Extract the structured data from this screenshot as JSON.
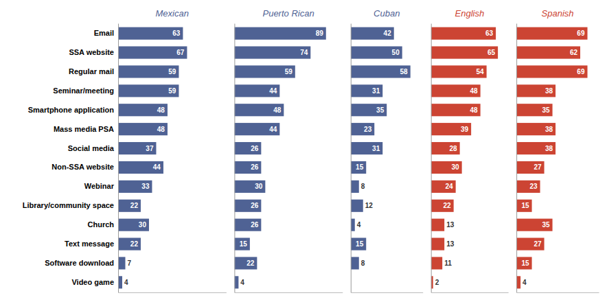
{
  "chart_data": [
    {
      "type": "bar",
      "orientation": "horizontal",
      "title": "Mexican",
      "categories": [
        "Email",
        "SSA website",
        "Regular mail",
        "Seminar/meeting",
        "Smartphone application",
        "Mass media PSA",
        "Social media",
        "Non-SSA website",
        "Webinar",
        "Library/community space",
        "Church",
        "Text message",
        "Software download",
        "Video game"
      ],
      "values": [
        63,
        67,
        59,
        59,
        48,
        48,
        37,
        44,
        33,
        22,
        30,
        22,
        7,
        4
      ],
      "color": "#4f6294",
      "xlim": [
        0,
        105
      ],
      "xticks": [],
      "data_labels": true,
      "tick_labels": "y"
    },
    {
      "type": "bar",
      "orientation": "horizontal",
      "title": "Puerto Rican",
      "categories": [
        "Email",
        "SSA website",
        "Regular mail",
        "Seminar/meeting",
        "Smartphone application",
        "Mass media PSA",
        "Social media",
        "Non-SSA website",
        "Webinar",
        "Library/community space",
        "Church",
        "Text message",
        "Software download",
        "Video game"
      ],
      "values": [
        89,
        74,
        59,
        44,
        48,
        44,
        26,
        26,
        30,
        26,
        26,
        15,
        22,
        4
      ],
      "color": "#4f6294",
      "xlim": [
        0,
        105
      ],
      "xticks": [],
      "data_labels": true,
      "tick_labels": false
    },
    {
      "type": "bar",
      "orientation": "horizontal",
      "title": "Cuban",
      "categories": [
        "Email",
        "SSA website",
        "Regular mail",
        "Seminar/meeting",
        "Smartphone application",
        "Mass media PSA",
        "Social media",
        "Non-SSA website",
        "Webinar",
        "Library/community space",
        "Church",
        "Text message",
        "Software download",
        "Video game"
      ],
      "values": [
        42,
        50,
        58,
        31,
        35,
        23,
        31,
        15,
        8,
        12,
        4,
        15,
        8,
        0
      ],
      "color": "#4f6294",
      "xlim": [
        0,
        70
      ],
      "xticks": [],
      "data_labels": true,
      "tick_labels": false
    },
    {
      "type": "bar",
      "orientation": "horizontal",
      "title": "English",
      "categories": [
        "Email",
        "SSA website",
        "Regular mail",
        "Seminar/meeting",
        "Smartphone application",
        "Mass media PSA",
        "Social media",
        "Non-SSA website",
        "Webinar",
        "Library/community space",
        "Church",
        "Text message",
        "Software download",
        "Video game"
      ],
      "values": [
        63,
        65,
        54,
        48,
        48,
        39,
        28,
        30,
        24,
        22,
        13,
        13,
        11,
        2
      ],
      "color": "#cc4433",
      "xlim": [
        0,
        75
      ],
      "xticks": [],
      "data_labels": true,
      "tick_labels": false
    },
    {
      "type": "bar",
      "orientation": "horizontal",
      "title": "Spanish",
      "categories": [
        "Email",
        "SSA website",
        "Regular mail",
        "Seminar/meeting",
        "Smartphone application",
        "Mass media PSA",
        "Social media",
        "Non-SSA website",
        "Webinar",
        "Library/community space",
        "Church",
        "Text message",
        "Software download",
        "Video game"
      ],
      "values": [
        69,
        62,
        69,
        38,
        35,
        38,
        38,
        27,
        23,
        15,
        35,
        27,
        15,
        4
      ],
      "color": "#cc4433",
      "xlim": [
        0,
        80
      ],
      "xticks": [],
      "data_labels": true,
      "tick_labels": false
    }
  ]
}
